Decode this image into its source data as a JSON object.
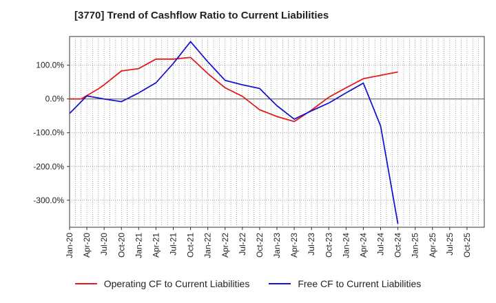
{
  "chart_data": {
    "type": "line",
    "title": "[3770]  Trend of Cashflow Ratio to Current Liabilities",
    "x_tick_labels": [
      "Jan-20",
      "Apr-20",
      "Jul-20",
      "Oct-20",
      "Jan-21",
      "Apr-21",
      "Jul-21",
      "Oct-21",
      "Jan-22",
      "Apr-22",
      "Jul-22",
      "Oct-22",
      "Jan-23",
      "Apr-23",
      "Jul-23",
      "Oct-23",
      "Jan-24",
      "Apr-24",
      "Jul-24",
      "Oct-24",
      "Jan-25",
      "Apr-25",
      "Jul-25",
      "Oct-25"
    ],
    "y_ticks": [
      -300,
      -200,
      -100,
      0,
      100
    ],
    "y_tick_labels": [
      "-300.0%",
      "-200.0%",
      "-100.0%",
      "0.0%",
      "100.0%"
    ],
    "ylim": [
      -380,
      185
    ],
    "grid": true,
    "legend_position": "bottom",
    "series": [
      {
        "name": "Operating CF to Current Liabilities",
        "color": "#e41a1c",
        "points": [
          {
            "x": "Jan-20",
            "y": 0
          },
          {
            "x": "Mar-20",
            "y": 0
          },
          {
            "x": "Jun-20",
            "y": 30
          },
          {
            "x": "Jul-20",
            "y": 42
          },
          {
            "x": "Oct-20",
            "y": 83
          },
          {
            "x": "Jan-21",
            "y": 90
          },
          {
            "x": "Apr-21",
            "y": 118
          },
          {
            "x": "Jul-21",
            "y": 118
          },
          {
            "x": "Oct-21",
            "y": 123
          },
          {
            "x": "Jan-22",
            "y": 75
          },
          {
            "x": "Apr-22",
            "y": 33
          },
          {
            "x": "Jul-22",
            "y": 8
          },
          {
            "x": "Oct-22",
            "y": -32
          },
          {
            "x": "Jan-23",
            "y": -52
          },
          {
            "x": "Apr-23",
            "y": -67
          },
          {
            "x": "Jul-23",
            "y": -33
          },
          {
            "x": "Oct-23",
            "y": 5
          },
          {
            "x": "Jan-24",
            "y": 33
          },
          {
            "x": "Apr-24",
            "y": 60
          },
          {
            "x": "Jul-24",
            "y": 70
          },
          {
            "x": "Oct-24",
            "y": 80
          }
        ]
      },
      {
        "name": "Free CF to Current Liabilities",
        "color": "#1414d2",
        "points": [
          {
            "x": "Jan-20",
            "y": -43
          },
          {
            "x": "Apr-20",
            "y": 9
          },
          {
            "x": "Jul-20",
            "y": 0
          },
          {
            "x": "Oct-20",
            "y": -8
          },
          {
            "x": "Jan-21",
            "y": 18
          },
          {
            "x": "Apr-21",
            "y": 48
          },
          {
            "x": "Jul-21",
            "y": 105
          },
          {
            "x": "Oct-21",
            "y": 170
          },
          {
            "x": "Jan-22",
            "y": 110
          },
          {
            "x": "Apr-22",
            "y": 55
          },
          {
            "x": "Jul-22",
            "y": 42
          },
          {
            "x": "Oct-22",
            "y": 31
          },
          {
            "x": "Jan-23",
            "y": -20
          },
          {
            "x": "Apr-23",
            "y": -60
          },
          {
            "x": "Jul-23",
            "y": -35
          },
          {
            "x": "Oct-23",
            "y": -12
          },
          {
            "x": "Jan-24",
            "y": 18
          },
          {
            "x": "Apr-24",
            "y": 47
          },
          {
            "x": "Jul-24",
            "y": -80
          },
          {
            "x": "Oct-24",
            "y": -370
          }
        ]
      }
    ]
  }
}
